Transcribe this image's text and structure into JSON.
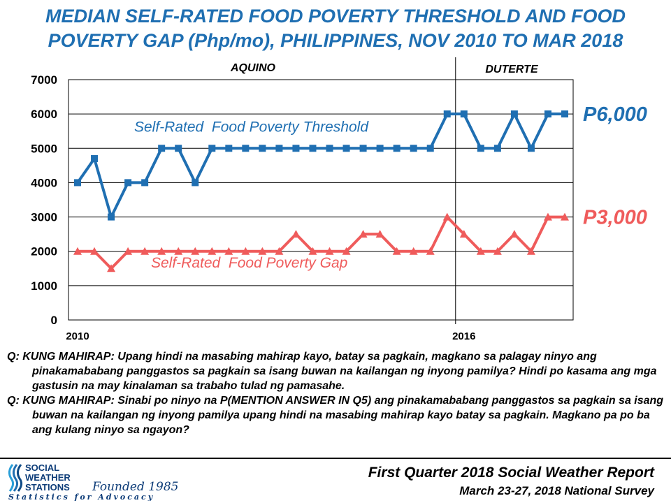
{
  "header": {
    "title_line1": "MEDIAN SELF-RATED FOOD POVERTY THRESHOLD AND FOOD",
    "title_line2": "POVERTY GAP (Php/mo), PHILIPPINES, NOV 2010 TO MAR 2018"
  },
  "chart_data": {
    "type": "line",
    "title": "MEDIAN SELF-RATED FOOD POVERTY THRESHOLD AND FOOD POVERTY GAP (Php/mo), PHILIPPINES, NOV 2010 TO MAR 2018",
    "x_tick_labels": [
      "2010",
      "2016"
    ],
    "y_ticks": [
      0,
      1000,
      2000,
      3000,
      4000,
      5000,
      6000,
      7000
    ],
    "ylim": [
      0,
      7000
    ],
    "grid": true,
    "period_labels": [
      "AQUINO",
      "DUTERTE"
    ],
    "series": [
      {
        "name": "Self-Rated  Food Poverty Threshold",
        "color": "#1f6fb2",
        "marker": "square",
        "end_label": "P6,000",
        "values": [
          4000,
          4700,
          3000,
          4000,
          4000,
          5000,
          5000,
          4000,
          5000,
          5000,
          5000,
          5000,
          5000,
          5000,
          5000,
          5000,
          5000,
          5000,
          5000,
          5000,
          5000,
          5000,
          6000,
          6000,
          5000,
          5000,
          6000,
          5000,
          6000,
          6000
        ]
      },
      {
        "name": "Self-Rated  Food Poverty Gap",
        "color": "#ef5b5b",
        "marker": "triangle",
        "end_label": "P3,000",
        "values": [
          2000,
          2000,
          1500,
          2000,
          2000,
          2000,
          2000,
          2000,
          2000,
          2000,
          2000,
          2000,
          2000,
          2500,
          2000,
          2000,
          2000,
          2500,
          2500,
          2000,
          2000,
          2000,
          3000,
          2500,
          2000,
          2000,
          2500,
          2000,
          3000,
          3000
        ]
      }
    ]
  },
  "questions": {
    "q1": "Q: KUNG MAHIRAP: Upang hindi na masabing mahirap kayo, batay sa pagkain, magkano sa palagay ninyo ang pinakamababang panggastos sa pagkain sa isang buwan na kailangan ng inyong pamilya? Hindi po kasama ang mga gastusin na may kinalaman sa trabaho tulad ng pamasahe.",
    "q2": "Q: KUNG MAHIRAP: Sinabi po ninyo na P(MENTION ANSWER IN Q5) ang pinakamababang panggastos sa pagkain sa isang buwan na kailangan ng inyong pamilya upang hindi na masabing mahirap kayo batay sa pagkain. Magkano pa po ba ang kulang ninyo sa ngayon?"
  },
  "footer": {
    "logo_line1": "SOCIAL",
    "logo_line2": "WEATHER",
    "logo_line3": "STATIONS",
    "logo_founded": "Founded 1985",
    "logo_tagline": "Statistics for Advocacy",
    "report_title": "First Quarter 2018 Social Weather Report",
    "report_subtitle": "March 23-27, 2018 National Survey"
  },
  "colors": {
    "title": "#1f6fb2",
    "threshold": "#1f6fb2",
    "gap": "#ef5b5b"
  }
}
